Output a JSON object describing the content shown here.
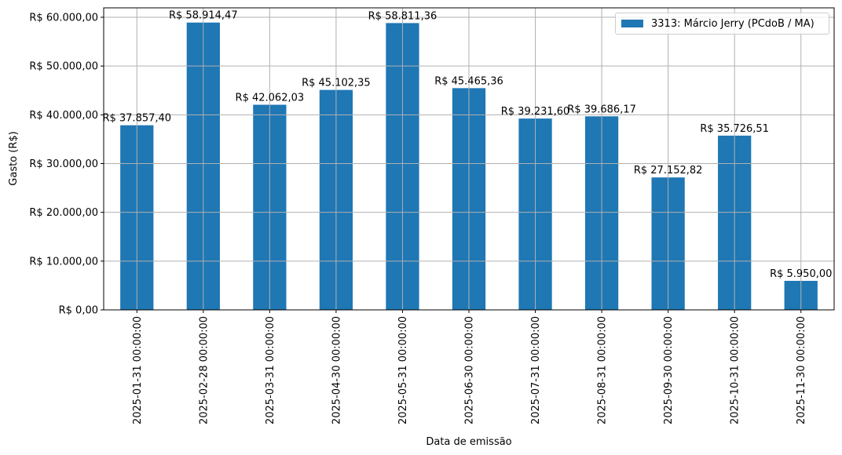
{
  "chart_data": {
    "type": "bar",
    "title": "",
    "xlabel": "Data de emissão",
    "ylabel": "Gasto (R$)",
    "ylim": [
      0,
      61930
    ],
    "grid": true,
    "legend_position": "upper right",
    "categories": [
      "2025-01-31 00:00:00",
      "2025-02-28 00:00:00",
      "2025-03-31 00:00:00",
      "2025-04-30 00:00:00",
      "2025-05-31 00:00:00",
      "2025-06-30 00:00:00",
      "2025-07-31 00:00:00",
      "2025-08-31 00:00:00",
      "2025-09-30 00:00:00",
      "2025-10-31 00:00:00",
      "2025-11-30 00:00:00"
    ],
    "series": [
      {
        "name": "3313: Márcio Jerry (PCdoB / MA)",
        "color": "#1f77b4",
        "values": [
          37857.4,
          58914.47,
          42062.03,
          45102.35,
          58811.36,
          45465.36,
          39231.6,
          39686.17,
          27152.82,
          35726.51,
          5950.0
        ],
        "labels": [
          "R$ 37.857,40",
          "R$ 58.914,47",
          "R$ 42.062,03",
          "R$ 45.102,35",
          "R$ 58.811,36",
          "R$ 45.465,36",
          "R$ 39.231,60",
          "R$ 39.686,17",
          "R$ 27.152,82",
          "R$ 35.726,51",
          "R$ 5.950,00"
        ]
      }
    ],
    "yticks": [
      0,
      10000,
      20000,
      30000,
      40000,
      50000,
      60000
    ],
    "ytick_labels": [
      "R$ 0,00",
      "R$ 10.000,00",
      "R$ 20.000,00",
      "R$ 30.000,00",
      "R$ 40.000,00",
      "R$ 50.000,00",
      "R$ 60.000,00"
    ]
  },
  "legend": {
    "label": "3313: Márcio Jerry (PCdoB / MA)"
  },
  "colors": {
    "bar": "#1f77b4",
    "grid": "#b0b0b0",
    "axis": "#000000"
  }
}
